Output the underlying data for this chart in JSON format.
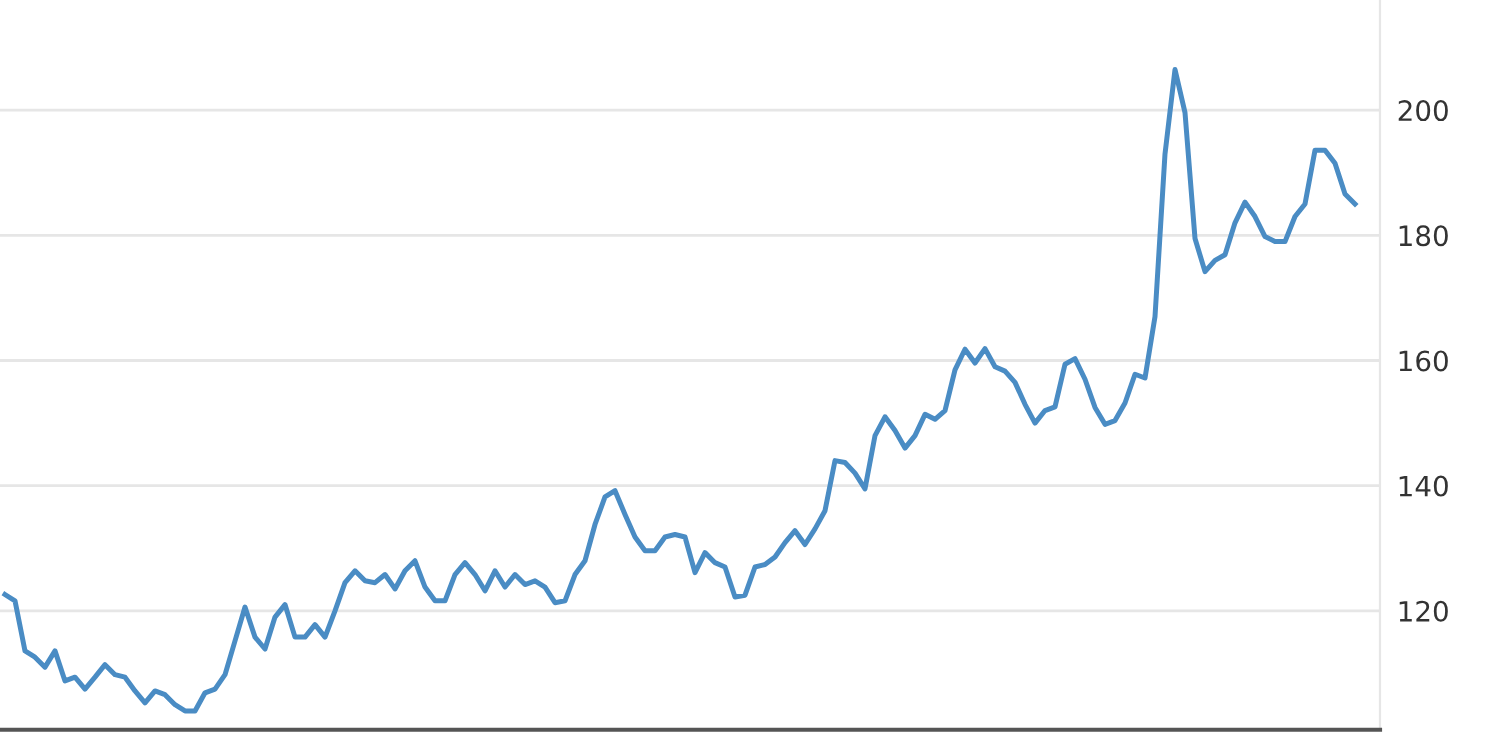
{
  "chart_data": {
    "type": "line",
    "categories": [
      null,
      null,
      null,
      null,
      null,
      null,
      null,
      null,
      null,
      null,
      null,
      null,
      null,
      null,
      null,
      null,
      null,
      null,
      null,
      null,
      null,
      null,
      null,
      null,
      null,
      null,
      null,
      null,
      null,
      null,
      null,
      null,
      null,
      null,
      null,
      null,
      null,
      null,
      null,
      null,
      null,
      null,
      null,
      null,
      null,
      null,
      null,
      null,
      null,
      null,
      null,
      null,
      null,
      null,
      null,
      null,
      null,
      null,
      null,
      null,
      null,
      null,
      null,
      null,
      null,
      null,
      null,
      null,
      null,
      null,
      null,
      null,
      null,
      null,
      null,
      null,
      null,
      null,
      null,
      null,
      null,
      null,
      null,
      null,
      null,
      null,
      null,
      null,
      null,
      null,
      null,
      null,
      null,
      null,
      null,
      null,
      null,
      null,
      null,
      null,
      null,
      null,
      null,
      null,
      null,
      null,
      null,
      null,
      null,
      null,
      null,
      null,
      null,
      null,
      null,
      null,
      null,
      null,
      null,
      null,
      null,
      null,
      null,
      null,
      null,
      null,
      null,
      null,
      null,
      null,
      null,
      null,
      null,
      null,
      null,
      null
    ],
    "series": [
      {
        "color": "#4a8cc4",
        "values": [
          122.6,
          121.6,
          113.6,
          112.6,
          111,
          113.6,
          108.8,
          109.4,
          107.5,
          109.4,
          111.4,
          109.8,
          109.4,
          107.2,
          105.3,
          107.2,
          106.6,
          105,
          104,
          104,
          106.9,
          107.5,
          109.8,
          115.2,
          120.6,
          115.8,
          113.9,
          119,
          121,
          115.8,
          115.8,
          117.8,
          115.8,
          120,
          124.5,
          126.4,
          124.8,
          124.5,
          125.8,
          123.5,
          126.4,
          128,
          123.8,
          121.6,
          121.6,
          125.8,
          127.7,
          125.8,
          123.2,
          126.4,
          123.8,
          125.8,
          124.2,
          124.8,
          123.8,
          121.3,
          121.6,
          125.8,
          128,
          133.8,
          138.2,
          139.2,
          135.4,
          131.8,
          129.6,
          129.6,
          131.8,
          132.2,
          131.8,
          126.1,
          129.3,
          127.7,
          127,
          122.2,
          122.5,
          127,
          127.4,
          128.6,
          130.9,
          132.8,
          130.6,
          133.1,
          136,
          144,
          143.7,
          142,
          139.5,
          148,
          151,
          148.8,
          146,
          148,
          151.4,
          150.6,
          152,
          158.5,
          161.8,
          159.6,
          161.9,
          159,
          158.3,
          156.5,
          153,
          150,
          152,
          152.6,
          159.4,
          160.3,
          157,
          152.5,
          149.8,
          150.4,
          153.2,
          157.8,
          157.2,
          167,
          193,
          206.5,
          199.6,
          179.5,
          174.2,
          176,
          176.9,
          182,
          185.3,
          183,
          179.8,
          179,
          179,
          183,
          185,
          193.6,
          193.6,
          191.5,
          186.6,
          185
        ]
      }
    ],
    "ylim": [
      101,
      217.6
    ],
    "yticks": [
      120,
      140,
      160,
      180,
      200
    ],
    "grid": "y",
    "line_style": "solid",
    "marker": "none"
  }
}
